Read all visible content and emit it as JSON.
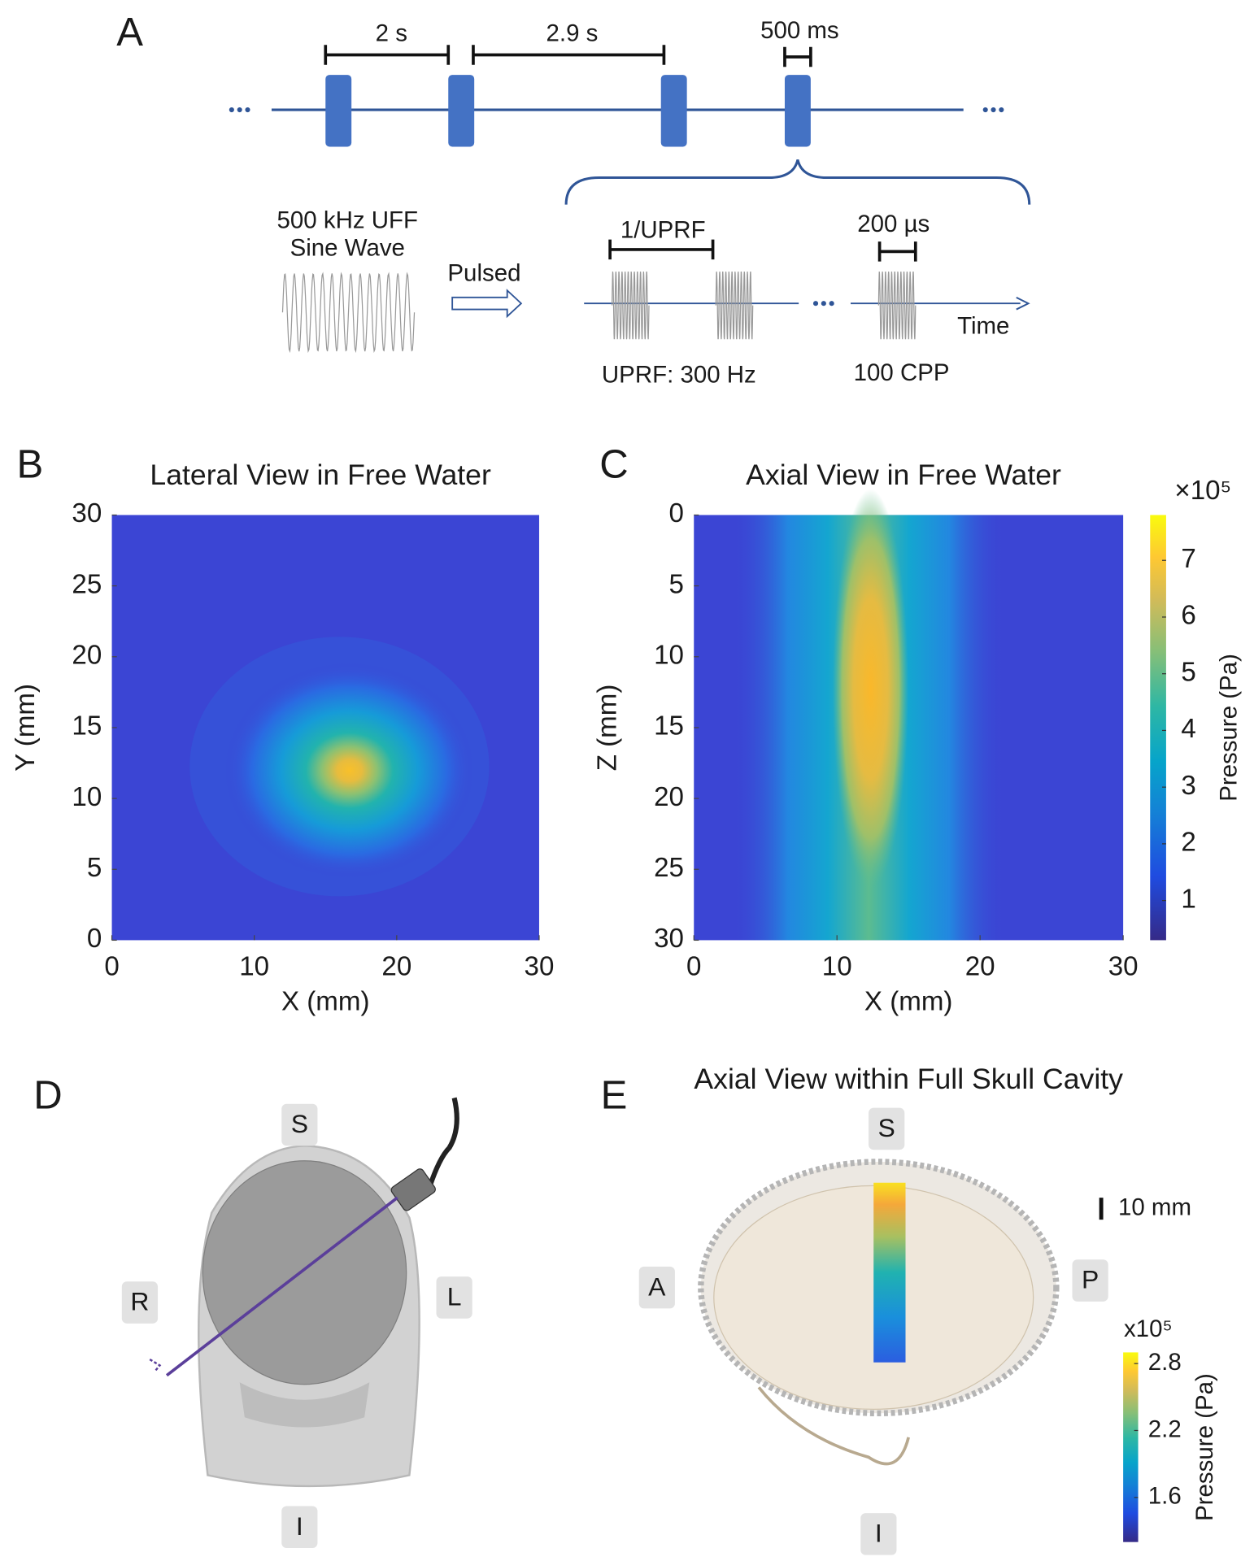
{
  "panel_a": {
    "label": "A",
    "intervals": [
      "2 s",
      "2.9 s",
      "500 ms"
    ],
    "waveform": [
      "500 kHz UFF",
      "Sine Wave"
    ],
    "arrow_label": "Pulsed",
    "burst_period": "1/UPRF",
    "burst_duration": "200 µs",
    "axis_label": "Time",
    "uprf": "UPRF: 300 Hz",
    "cycles": "100 CPP"
  },
  "chart_data": [
    {
      "type": "heatmap",
      "panel": "B",
      "title": "Lateral View in Free Water",
      "x_label": "X (mm)",
      "y_label": "Y (mm)",
      "xlim": [
        0,
        30
      ],
      "ylim": [
        0,
        30
      ],
      "xticks": [
        0,
        10,
        20,
        30
      ],
      "yticks": [
        0,
        5,
        10,
        15,
        20,
        25,
        30
      ]
    },
    {
      "type": "heatmap",
      "panel": "C",
      "title": "Axial View in Free Water",
      "x_label": "X (mm)",
      "y_label": "Z (mm)",
      "xlim": [
        0,
        30
      ],
      "ylim": [
        30,
        0
      ],
      "xticks": [
        0,
        10,
        20,
        30
      ],
      "yticks": [
        0,
        5,
        10,
        15,
        20,
        25,
        30
      ],
      "colorbar": {
        "label": "Pressure (Pa)",
        "multiplier": "×10⁵",
        "clim": [
          0.3,
          7.8
        ],
        "ticks": [
          1,
          2,
          3,
          4,
          5,
          6,
          7
        ]
      }
    }
  ],
  "panel_d": {
    "label": "D",
    "orientation": [
      "S",
      "R",
      "L",
      "I"
    ]
  },
  "panel_e": {
    "label": "E",
    "title": "Axial View within Full Skull Cavity",
    "orientation": [
      "S",
      "A",
      "P",
      "I"
    ],
    "scale_bar": "10 mm",
    "colorbar": {
      "label": "Pressure (Pa)",
      "multiplier": "x10⁵",
      "clim": [
        1.2,
        2.9
      ],
      "ticks": [
        1.6,
        2.2,
        2.8
      ]
    }
  }
}
